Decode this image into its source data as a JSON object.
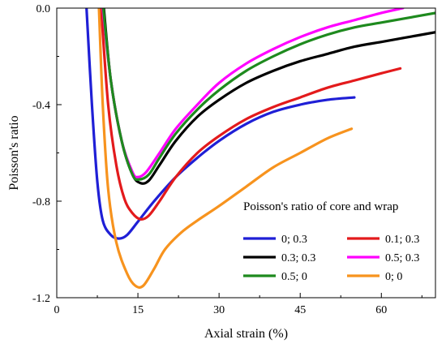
{
  "chart_data": {
    "type": "line",
    "xlabel": "Axial strain (%)",
    "ylabel": "Poisson's ratio",
    "xlim": [
      0,
      70
    ],
    "ylim": [
      -1.2,
      0.0
    ],
    "x_ticks": [
      0,
      15,
      30,
      45,
      60
    ],
    "y_ticks": [
      0.0,
      -0.4,
      -0.8,
      -1.2
    ],
    "grid": false,
    "legend": {
      "title": "Poisson's ratio of core and wrap",
      "placement": "bottom-right",
      "columns": 2
    },
    "series": [
      {
        "name": "0; 0.3",
        "color": "#1f1fd6",
        "points": [
          [
            5.5,
            0.0
          ],
          [
            6.5,
            -0.4
          ],
          [
            7.5,
            -0.72
          ],
          [
            8.5,
            -0.88
          ],
          [
            10.0,
            -0.94
          ],
          [
            11.5,
            -0.955
          ],
          [
            13.0,
            -0.94
          ],
          [
            15.0,
            -0.885
          ],
          [
            18.0,
            -0.8
          ],
          [
            22.0,
            -0.7
          ],
          [
            26.0,
            -0.62
          ],
          [
            30.0,
            -0.55
          ],
          [
            35.0,
            -0.48
          ],
          [
            40.0,
            -0.43
          ],
          [
            45.0,
            -0.4
          ],
          [
            50.0,
            -0.38
          ],
          [
            55.0,
            -0.37
          ]
        ]
      },
      {
        "name": "0.1; 0.3",
        "color": "#e31a1c",
        "points": [
          [
            8.2,
            0.0
          ],
          [
            9.5,
            -0.4
          ],
          [
            11.0,
            -0.65
          ],
          [
            12.5,
            -0.79
          ],
          [
            14.0,
            -0.85
          ],
          [
            15.5,
            -0.875
          ],
          [
            17.0,
            -0.86
          ],
          [
            19.0,
            -0.8
          ],
          [
            22.0,
            -0.7
          ],
          [
            26.0,
            -0.6
          ],
          [
            30.0,
            -0.53
          ],
          [
            35.0,
            -0.46
          ],
          [
            40.0,
            -0.41
          ],
          [
            45.0,
            -0.37
          ],
          [
            50.0,
            -0.33
          ],
          [
            55.0,
            -0.3
          ],
          [
            60.0,
            -0.27
          ],
          [
            63.5,
            -0.25
          ]
        ]
      },
      {
        "name": "0.3; 0.3",
        "color": "#000000",
        "points": [
          [
            8.7,
            0.0
          ],
          [
            10.0,
            -0.3
          ],
          [
            12.0,
            -0.55
          ],
          [
            14.0,
            -0.69
          ],
          [
            15.5,
            -0.725
          ],
          [
            17.0,
            -0.715
          ],
          [
            19.0,
            -0.65
          ],
          [
            22.0,
            -0.55
          ],
          [
            26.0,
            -0.45
          ],
          [
            30.0,
            -0.38
          ],
          [
            35.0,
            -0.31
          ],
          [
            40.0,
            -0.26
          ],
          [
            45.0,
            -0.22
          ],
          [
            50.0,
            -0.19
          ],
          [
            55.0,
            -0.16
          ],
          [
            60.0,
            -0.14
          ],
          [
            65.0,
            -0.12
          ],
          [
            70.0,
            -0.1
          ]
        ]
      },
      {
        "name": "0.5; 0.3",
        "color": "#ff00ff",
        "points": [
          [
            8.5,
            0.0
          ],
          [
            10.0,
            -0.3
          ],
          [
            12.0,
            -0.55
          ],
          [
            14.0,
            -0.68
          ],
          [
            15.0,
            -0.7
          ],
          [
            16.5,
            -0.68
          ],
          [
            19.0,
            -0.6
          ],
          [
            22.0,
            -0.5
          ],
          [
            26.0,
            -0.4
          ],
          [
            30.0,
            -0.31
          ],
          [
            35.0,
            -0.23
          ],
          [
            40.0,
            -0.17
          ],
          [
            45.0,
            -0.12
          ],
          [
            50.0,
            -0.08
          ],
          [
            55.0,
            -0.05
          ],
          [
            60.0,
            -0.02
          ],
          [
            64.0,
            0.0
          ]
        ]
      },
      {
        "name": "0.5; 0",
        "color": "#1e8a1e",
        "points": [
          [
            8.6,
            0.0
          ],
          [
            10.0,
            -0.3
          ],
          [
            12.0,
            -0.55
          ],
          [
            14.0,
            -0.69
          ],
          [
            15.2,
            -0.71
          ],
          [
            17.0,
            -0.69
          ],
          [
            19.0,
            -0.62
          ],
          [
            22.0,
            -0.52
          ],
          [
            26.0,
            -0.42
          ],
          [
            30.0,
            -0.34
          ],
          [
            35.0,
            -0.26
          ],
          [
            40.0,
            -0.2
          ],
          [
            45.0,
            -0.15
          ],
          [
            50.0,
            -0.11
          ],
          [
            55.0,
            -0.08
          ],
          [
            60.0,
            -0.06
          ],
          [
            65.0,
            -0.04
          ],
          [
            70.0,
            -0.02
          ]
        ]
      },
      {
        "name": "0; 0",
        "color": "#f7931e",
        "points": [
          [
            7.8,
            0.0
          ],
          [
            8.5,
            -0.4
          ],
          [
            9.5,
            -0.75
          ],
          [
            11.0,
            -0.97
          ],
          [
            13.0,
            -1.1
          ],
          [
            14.5,
            -1.15
          ],
          [
            16.0,
            -1.15
          ],
          [
            18.0,
            -1.08
          ],
          [
            20.0,
            -1.0
          ],
          [
            23.0,
            -0.93
          ],
          [
            26.0,
            -0.88
          ],
          [
            30.0,
            -0.82
          ],
          [
            35.0,
            -0.74
          ],
          [
            40.0,
            -0.66
          ],
          [
            45.0,
            -0.6
          ],
          [
            50.0,
            -0.54
          ],
          [
            54.5,
            -0.5
          ]
        ]
      }
    ]
  }
}
